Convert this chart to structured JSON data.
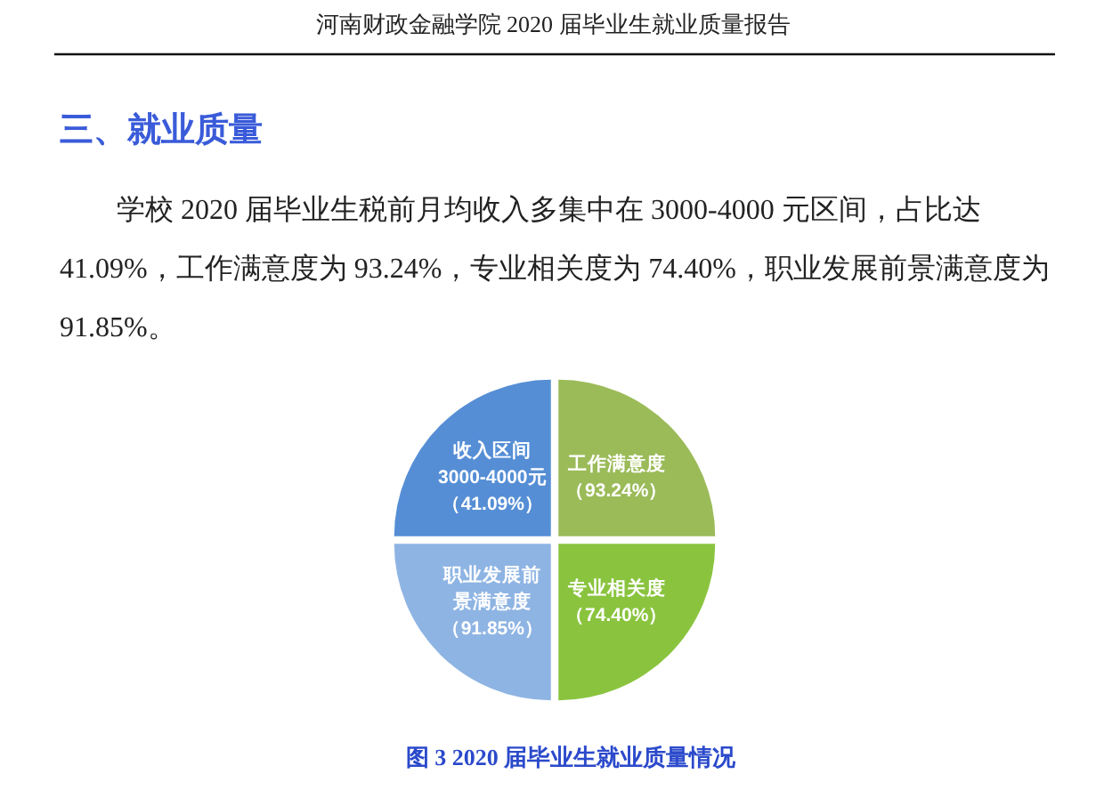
{
  "chart_data": {
    "type": "pie",
    "title": "图 3 2020 届毕业生就业质量情况",
    "annotations": [
      "河南财政金融学院 2020 届毕业生就业质量报告",
      "三、就业质量",
      "学校 2020 届毕业生税前月均收入多集中在 3000-4000 元区间，占比达 41.09%，工作满意度为 93.24%，专业相关度为 74.40%，职业发展前景满意度为 91.85%。"
    ],
    "categories": [
      "收入区间3000-4000元（41.09%）",
      "工作满意度（93.24%）",
      "专业相关度（74.40%）",
      "职业发展前景满意度（91.85%）"
    ],
    "values": [
      25,
      25,
      25,
      25
    ],
    "colors": [
      "#558ed5",
      "#9bbb59",
      "#8ac43f",
      "#8eb4e3"
    ]
  }
}
